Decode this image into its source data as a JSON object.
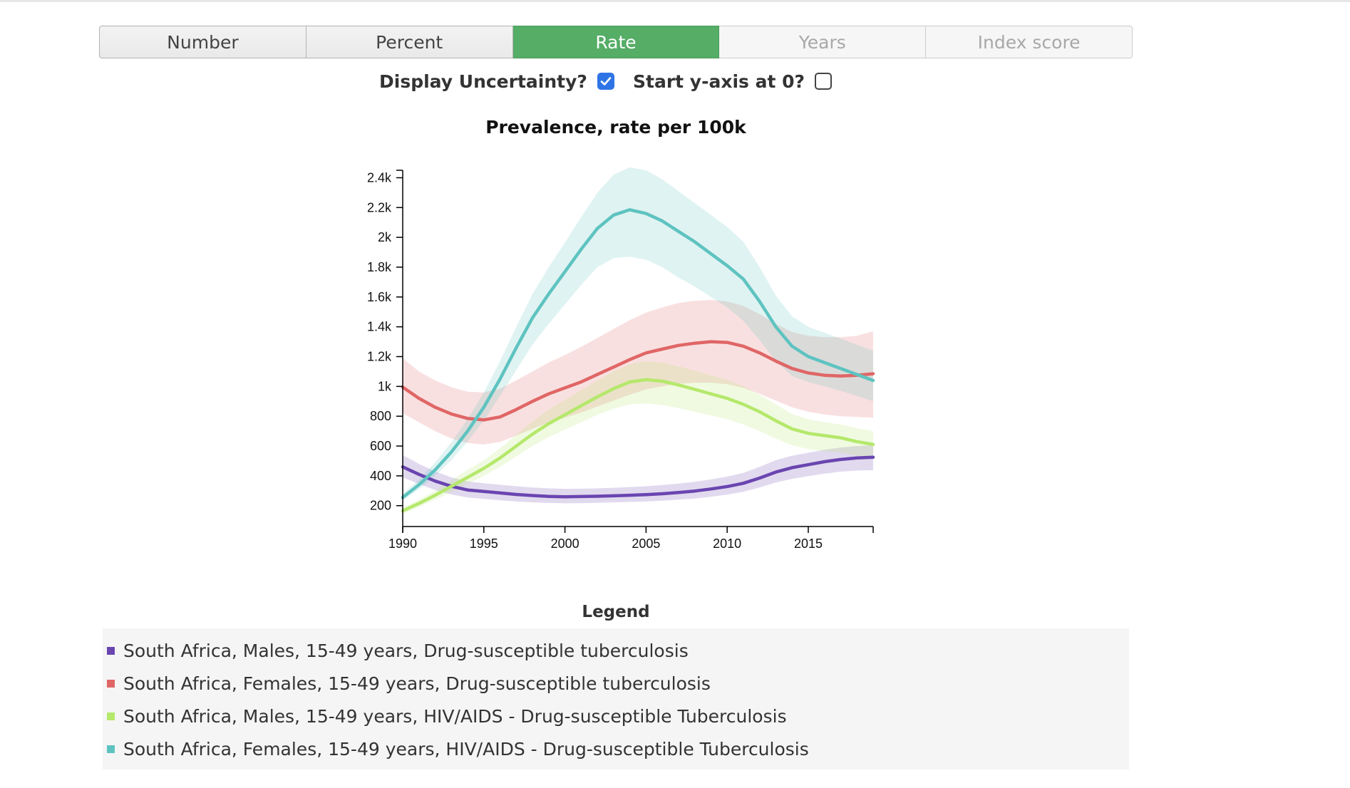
{
  "tabs": [
    {
      "label": "Number",
      "state": "normal"
    },
    {
      "label": "Percent",
      "state": "normal"
    },
    {
      "label": "Rate",
      "state": "active"
    },
    {
      "label": "Years",
      "state": "disabled"
    },
    {
      "label": "Index score",
      "state": "disabled"
    }
  ],
  "controls": {
    "uncertainty_label": "Display Uncertainty?",
    "uncertainty_checked": true,
    "yzero_label": "Start y-axis at 0?",
    "yzero_checked": false
  },
  "legend": {
    "title": "Legend",
    "items": [
      {
        "label": "South Africa, Males, 15-49 years, Drug-susceptible tuberculosis",
        "color": "#6a45b0"
      },
      {
        "label": "South Africa, Females, 15-49 years, Drug-susceptible tuberculosis",
        "color": "#e06666"
      },
      {
        "label": "South Africa, Males, 15-49 years, HIV/AIDS - Drug-susceptible Tuberculosis",
        "color": "#b5e86b"
      },
      {
        "label": "South Africa, Females, 15-49 years, HIV/AIDS - Drug-susceptible Tuberculosis",
        "color": "#5ec3c0"
      }
    ]
  },
  "chart_data": {
    "type": "line",
    "title": "Prevalence, rate per 100k",
    "xlabel": "",
    "ylabel": "",
    "xlim": [
      1990,
      2019
    ],
    "ylim": [
      60,
      2450
    ],
    "x_ticks": [
      1990,
      1995,
      2000,
      2005,
      2010,
      2015
    ],
    "y_ticks": [
      {
        "value": 200,
        "label": "200"
      },
      {
        "value": 400,
        "label": "400"
      },
      {
        "value": 600,
        "label": "600"
      },
      {
        "value": 800,
        "label": "800"
      },
      {
        "value": 1000,
        "label": "1k"
      },
      {
        "value": 1200,
        "label": "1.2k"
      },
      {
        "value": 1400,
        "label": "1.4k"
      },
      {
        "value": 1600,
        "label": "1.6k"
      },
      {
        "value": 1800,
        "label": "1.8k"
      },
      {
        "value": 2000,
        "label": "2k"
      },
      {
        "value": 2200,
        "label": "2.2k"
      },
      {
        "value": 2400,
        "label": "2.4k"
      }
    ],
    "uncertainty_shown": true,
    "grid": false,
    "x": [
      1990,
      1991,
      1992,
      1993,
      1994,
      1995,
      1996,
      1997,
      1998,
      1999,
      2000,
      2001,
      2002,
      2003,
      2004,
      2005,
      2006,
      2007,
      2008,
      2009,
      2010,
      2011,
      2012,
      2013,
      2014,
      2015,
      2016,
      2017,
      2018,
      2019
    ],
    "series": [
      {
        "name": "South Africa, Males, 15-49 years, Drug-susceptible tuberculosis",
        "color": "#6a45b0",
        "values": [
          460,
          410,
          365,
          330,
          305,
          295,
          285,
          275,
          268,
          262,
          260,
          261,
          263,
          266,
          270,
          274,
          280,
          288,
          298,
          312,
          328,
          350,
          385,
          425,
          455,
          475,
          495,
          510,
          520,
          525
        ],
        "lower": [
          390,
          345,
          305,
          275,
          255,
          245,
          236,
          228,
          222,
          218,
          216,
          217,
          219,
          222,
          225,
          228,
          233,
          240,
          248,
          260,
          274,
          293,
          322,
          355,
          380,
          398,
          415,
          428,
          435,
          438
        ],
        "upper": [
          540,
          480,
          430,
          390,
          362,
          350,
          340,
          330,
          322,
          316,
          313,
          314,
          316,
          320,
          325,
          330,
          338,
          348,
          360,
          376,
          395,
          420,
          460,
          505,
          535,
          555,
          575,
          590,
          600,
          605
        ]
      },
      {
        "name": "South Africa, Females, 15-49 years, Drug-susceptible tuberculosis",
        "color": "#e06666",
        "values": [
          995,
          920,
          860,
          815,
          785,
          775,
          795,
          845,
          900,
          950,
          990,
          1030,
          1080,
          1130,
          1180,
          1225,
          1250,
          1275,
          1290,
          1300,
          1295,
          1270,
          1225,
          1170,
          1120,
          1090,
          1075,
          1070,
          1075,
          1085
        ],
        "lower": [
          820,
          760,
          700,
          650,
          620,
          610,
          628,
          670,
          715,
          758,
          790,
          825,
          865,
          905,
          945,
          980,
          1000,
          1018,
          1025,
          1025,
          1015,
          990,
          950,
          905,
          860,
          830,
          812,
          800,
          795,
          790
        ],
        "upper": [
          1190,
          1100,
          1040,
          995,
          965,
          960,
          985,
          1040,
          1100,
          1160,
          1210,
          1265,
          1325,
          1385,
          1445,
          1495,
          1530,
          1560,
          1575,
          1580,
          1570,
          1540,
          1485,
          1420,
          1365,
          1340,
          1330,
          1330,
          1340,
          1370
        ]
      },
      {
        "name": "South Africa, Males, 15-49 years, HIV/AIDS - Drug-susceptible Tuberculosis",
        "color": "#b5e86b",
        "values": [
          165,
          215,
          270,
          330,
          390,
          450,
          520,
          600,
          680,
          750,
          810,
          870,
          930,
          985,
          1030,
          1045,
          1035,
          1010,
          980,
          950,
          920,
          880,
          830,
          770,
          715,
          685,
          670,
          655,
          630,
          610
        ],
        "lower": [
          145,
          190,
          240,
          290,
          345,
          400,
          460,
          530,
          600,
          660,
          710,
          760,
          810,
          850,
          880,
          885,
          875,
          855,
          830,
          805,
          780,
          745,
          700,
          650,
          605,
          580,
          565,
          555,
          535,
          520
        ],
        "upper": [
          185,
          240,
          300,
          370,
          440,
          505,
          585,
          675,
          765,
          845,
          910,
          975,
          1040,
          1100,
          1150,
          1170,
          1160,
          1135,
          1105,
          1075,
          1045,
          1000,
          945,
          880,
          815,
          780,
          760,
          745,
          720,
          700
        ]
      },
      {
        "name": "South Africa, Females, 15-49 years, HIV/AIDS - Drug-susceptible Tuberculosis",
        "color": "#5ec3c0",
        "values": [
          255,
          340,
          440,
          560,
          700,
          860,
          1050,
          1260,
          1460,
          1620,
          1770,
          1920,
          2060,
          2150,
          2185,
          2160,
          2110,
          2040,
          1970,
          1890,
          1810,
          1720,
          1570,
          1400,
          1270,
          1200,
          1160,
          1120,
          1080,
          1040
        ],
        "lower": [
          235,
          310,
          400,
          505,
          630,
          770,
          935,
          1110,
          1280,
          1420,
          1550,
          1680,
          1800,
          1860,
          1870,
          1850,
          1800,
          1730,
          1670,
          1600,
          1530,
          1440,
          1310,
          1170,
          1070,
          1030,
          1000,
          970,
          935,
          900
        ],
        "upper": [
          280,
          375,
          490,
          625,
          780,
          960,
          1170,
          1400,
          1620,
          1800,
          1965,
          2135,
          2300,
          2420,
          2470,
          2450,
          2390,
          2310,
          2230,
          2150,
          2070,
          1970,
          1800,
          1610,
          1470,
          1400,
          1360,
          1320,
          1280,
          1240
        ]
      }
    ]
  }
}
